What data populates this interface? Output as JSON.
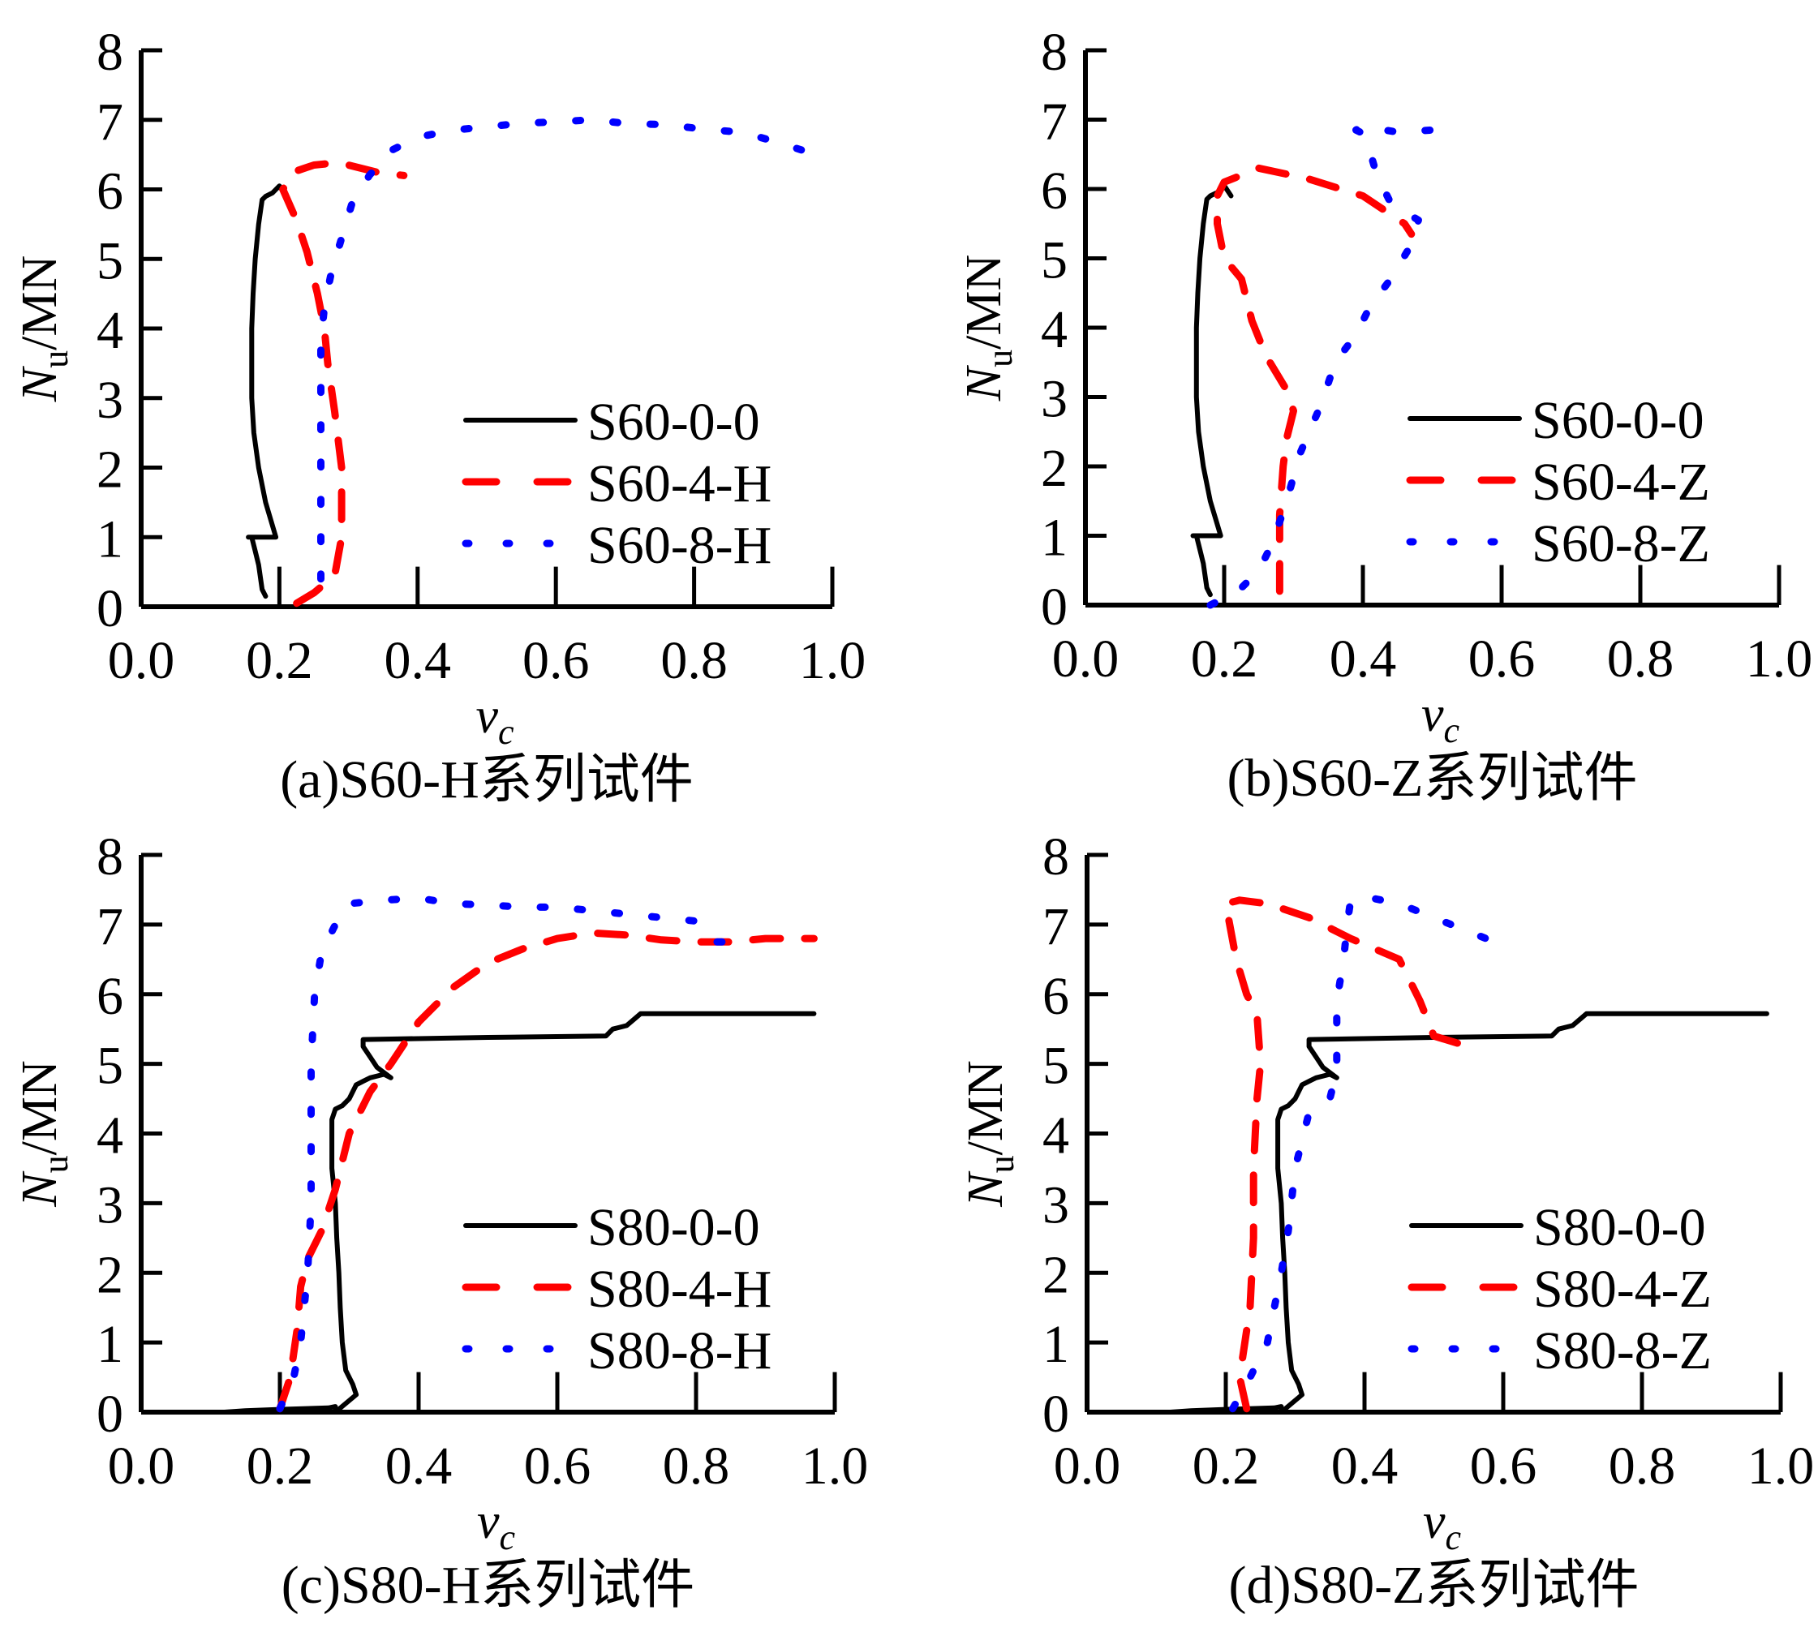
{
  "figure": {
    "panels": 4,
    "colors": {
      "series_0": "#000000",
      "series_4": "#ff0000",
      "series_8": "#0000ff"
    }
  },
  "chart_data": [
    {
      "id": "a",
      "type": "line",
      "caption": "(a)S60-H系列试件",
      "xlabel": "v",
      "xlabel_sub": "c",
      "ylabel": "N",
      "ylabel_sub": "u",
      "ylabel_unit": "/MN",
      "xlim": [
        0,
        1.0
      ],
      "ylim": [
        0,
        8
      ],
      "xticks": [
        "0.0",
        "0.2",
        "0.4",
        "0.6",
        "0.8",
        "1.0"
      ],
      "yticks": [
        "0",
        "1",
        "2",
        "3",
        "4",
        "5",
        "6",
        "7",
        "8"
      ],
      "legend_position": "lower-right",
      "series": [
        {
          "name": "S60-0-0",
          "style": "solid",
          "color": "#000000",
          "x": [
            0.18,
            0.175,
            0.17,
            0.165,
            0.16,
            0.155,
            0.195,
            0.18,
            0.17,
            0.163,
            0.16,
            0.16,
            0.16,
            0.162,
            0.165,
            0.17,
            0.175,
            0.18,
            0.19,
            0.2,
            0.21
          ],
          "y": [
            0.15,
            0.25,
            0.6,
            0.8,
            1.0,
            1.0,
            1.0,
            1.5,
            2.0,
            2.5,
            3.0,
            3.5,
            4.0,
            4.5,
            5.0,
            5.5,
            5.85,
            5.9,
            5.95,
            6.05,
            5.9
          ]
        },
        {
          "name": "S60-4-H",
          "style": "dashed",
          "color": "#ff0000",
          "x": [
            0.225,
            0.25,
            0.28,
            0.29,
            0.29,
            0.28,
            0.27,
            0.265,
            0.255,
            0.24,
            0.225,
            0.205,
            0.22,
            0.25,
            0.28,
            0.3,
            0.34,
            0.38
          ],
          "y": [
            0.05,
            0.2,
            0.45,
            1.0,
            2.0,
            2.8,
            3.5,
            4.0,
            4.5,
            5.1,
            5.55,
            6.0,
            6.25,
            6.35,
            6.38,
            6.35,
            6.25,
            6.2
          ]
        },
        {
          "name": "S60-8-H",
          "style": "dotted",
          "color": "#0000ff",
          "x": [
            0.26,
            0.26,
            0.26,
            0.26,
            0.26,
            0.265,
            0.275,
            0.29,
            0.305,
            0.33,
            0.36,
            0.4,
            0.45,
            0.5,
            0.55,
            0.6,
            0.65,
            0.7,
            0.76,
            0.81,
            0.87,
            0.92,
            0.97
          ],
          "y": [
            0.4,
            1.2,
            2.2,
            3.2,
            3.8,
            4.3,
            4.8,
            5.3,
            5.8,
            6.2,
            6.55,
            6.75,
            6.85,
            6.9,
            6.95,
            6.97,
            7.0,
            6.95,
            6.93,
            6.87,
            6.82,
            6.68,
            6.52
          ]
        }
      ]
    },
    {
      "id": "b",
      "type": "line",
      "caption": "(b)S60-Z系列试件",
      "xlabel": "v",
      "xlabel_sub": "c",
      "ylabel": "N",
      "ylabel_sub": "u",
      "ylabel_unit": "/MN",
      "xlim": [
        0,
        1.0
      ],
      "ylim": [
        0,
        8
      ],
      "xticks": [
        "0.0",
        "0.2",
        "0.4",
        "0.6",
        "0.8",
        "1.0"
      ],
      "yticks": [
        "0",
        "1",
        "2",
        "3",
        "4",
        "5",
        "6",
        "7",
        "8"
      ],
      "legend_position": "lower-right",
      "series": [
        {
          "name": "S60-0-0",
          "style": "solid",
          "color": "#000000",
          "x": [
            0.18,
            0.175,
            0.17,
            0.165,
            0.16,
            0.155,
            0.195,
            0.18,
            0.17,
            0.163,
            0.16,
            0.16,
            0.16,
            0.162,
            0.165,
            0.17,
            0.175,
            0.18,
            0.19,
            0.2,
            0.21
          ],
          "y": [
            0.15,
            0.25,
            0.6,
            0.8,
            1.0,
            1.0,
            1.0,
            1.5,
            2.0,
            2.5,
            3.0,
            3.5,
            4.0,
            4.5,
            5.0,
            5.5,
            5.85,
            5.9,
            5.95,
            6.05,
            5.9
          ]
        },
        {
          "name": "S60-4-Z",
          "style": "dashed",
          "color": "#ff0000",
          "x": [
            0.28,
            0.28,
            0.28,
            0.285,
            0.29,
            0.3,
            0.29,
            0.26,
            0.24,
            0.225,
            0.2,
            0.19,
            0.19,
            0.2,
            0.25,
            0.32,
            0.4,
            0.46,
            0.47
          ],
          "y": [
            0.2,
            0.8,
            1.3,
            2.0,
            2.4,
            2.8,
            3.1,
            3.6,
            4.1,
            4.7,
            5.0,
            5.5,
            5.9,
            6.1,
            6.3,
            6.15,
            5.9,
            5.5,
            5.35
          ]
        },
        {
          "name": "S60-8-Z",
          "style": "dotted",
          "color": "#0000ff",
          "x": [
            0.18,
            0.22,
            0.25,
            0.27,
            0.29,
            0.31,
            0.34,
            0.36,
            0.39,
            0.41,
            0.44,
            0.47,
            0.48,
            0.44,
            0.42,
            0.41,
            0.4,
            0.39,
            0.4,
            0.45,
            0.5
          ],
          "y": [
            0.0,
            0.2,
            0.5,
            0.9,
            1.5,
            2.2,
            2.9,
            3.5,
            3.9,
            4.3,
            4.7,
            5.2,
            5.55,
            5.8,
            6.2,
            6.55,
            6.8,
            6.85,
            6.9,
            6.82,
            6.85
          ]
        }
      ]
    },
    {
      "id": "c",
      "type": "line",
      "caption": "(c)S80-H系列试件",
      "xlabel": "v",
      "xlabel_sub": "c",
      "ylabel": "N",
      "ylabel_sub": "u",
      "ylabel_unit": "/MN",
      "xlim": [
        0,
        1.0
      ],
      "ylim": [
        0,
        8
      ],
      "xticks": [
        "0.0",
        "0.2",
        "0.4",
        "0.6",
        "0.8",
        "1.0"
      ],
      "yticks": [
        "0",
        "1",
        "2",
        "3",
        "4",
        "5",
        "6",
        "7",
        "8"
      ],
      "legend_position": "lower-right",
      "series": [
        {
          "name": "S80-0-0",
          "style": "solid",
          "color": "#000000",
          "x": [
            0.12,
            0.15,
            0.2,
            0.27,
            0.28,
            0.28,
            0.31,
            0.305,
            0.295,
            0.29,
            0.287,
            0.285,
            0.282,
            0.28,
            0.275,
            0.275,
            0.28,
            0.29,
            0.3,
            0.31,
            0.32,
            0.33,
            0.35,
            0.36,
            0.34,
            0.33,
            0.32,
            0.32,
            0.5,
            0.67,
            0.68,
            0.7,
            0.72,
            0.97
          ],
          "y": [
            0.0,
            0.02,
            0.04,
            0.06,
            0.08,
            0.0,
            0.25,
            0.4,
            0.6,
            1.0,
            1.5,
            2.0,
            2.5,
            3.0,
            3.5,
            4.2,
            4.35,
            4.4,
            4.5,
            4.7,
            4.75,
            4.8,
            4.85,
            4.8,
            4.95,
            5.1,
            5.25,
            5.35,
            5.38,
            5.4,
            5.5,
            5.55,
            5.72,
            5.72
          ]
        },
        {
          "name": "S80-4-H",
          "style": "dashed",
          "color": "#ff0000",
          "x": [
            0.2,
            0.215,
            0.225,
            0.23,
            0.24,
            0.26,
            0.28,
            0.3,
            0.33,
            0.36,
            0.4,
            0.45,
            0.5,
            0.55,
            0.6,
            0.65,
            0.7,
            0.75,
            0.8,
            0.85,
            0.9,
            0.97
          ],
          "y": [
            0.05,
            0.5,
            1.2,
            1.8,
            2.2,
            2.6,
            3.2,
            4.0,
            4.6,
            5.0,
            5.6,
            6.1,
            6.45,
            6.65,
            6.8,
            6.88,
            6.85,
            6.78,
            6.75,
            6.75,
            6.8,
            6.8
          ]
        },
        {
          "name": "S80-8-H",
          "style": "dotted",
          "color": "#0000ff",
          "x": [
            0.2,
            0.22,
            0.23,
            0.24,
            0.245,
            0.245,
            0.245,
            0.25,
            0.26,
            0.28,
            0.3,
            0.35,
            0.4,
            0.45,
            0.5,
            0.55,
            0.6,
            0.65,
            0.7,
            0.75,
            0.8,
            0.82,
            0.83,
            0.85
          ],
          "y": [
            0.05,
            0.5,
            1.0,
            2.0,
            3.0,
            4.0,
            5.0,
            6.0,
            6.6,
            7.0,
            7.3,
            7.35,
            7.38,
            7.3,
            7.28,
            7.25,
            7.25,
            7.2,
            7.15,
            7.1,
            7.05,
            6.9,
            6.75,
            6.75
          ]
        }
      ]
    },
    {
      "id": "d",
      "type": "line",
      "caption": "(d)S80-Z系列试件",
      "xlabel": "v",
      "xlabel_sub": "c",
      "ylabel": "N",
      "ylabel_sub": "u",
      "ylabel_unit": "/MN",
      "xlim": [
        0,
        1.0
      ],
      "ylim": [
        0,
        8
      ],
      "xticks": [
        "0.0",
        "0.2",
        "0.4",
        "0.6",
        "0.8",
        "1.0"
      ],
      "yticks": [
        "0",
        "1",
        "2",
        "3",
        "4",
        "5",
        "6",
        "7",
        "8"
      ],
      "legend_position": "lower-right",
      "series": [
        {
          "name": "S80-0-0",
          "style": "solid",
          "color": "#000000",
          "x": [
            0.12,
            0.15,
            0.2,
            0.27,
            0.28,
            0.28,
            0.31,
            0.305,
            0.295,
            0.29,
            0.287,
            0.285,
            0.282,
            0.28,
            0.275,
            0.275,
            0.28,
            0.29,
            0.3,
            0.31,
            0.32,
            0.33,
            0.35,
            0.36,
            0.34,
            0.33,
            0.32,
            0.32,
            0.5,
            0.67,
            0.68,
            0.7,
            0.72,
            0.98
          ],
          "y": [
            0.0,
            0.02,
            0.04,
            0.06,
            0.08,
            0.0,
            0.25,
            0.4,
            0.6,
            1.0,
            1.5,
            2.0,
            2.5,
            3.0,
            3.5,
            4.2,
            4.35,
            4.4,
            4.5,
            4.7,
            4.75,
            4.8,
            4.85,
            4.8,
            4.95,
            5.1,
            5.25,
            5.35,
            5.38,
            5.4,
            5.5,
            5.55,
            5.72,
            5.72
          ]
        },
        {
          "name": "S80-4-Z",
          "style": "dashed",
          "color": "#ff0000",
          "x": [
            0.23,
            0.22,
            0.235,
            0.24,
            0.24,
            0.245,
            0.25,
            0.245,
            0.23,
            0.215,
            0.2,
            0.22,
            0.26,
            0.32,
            0.38,
            0.45,
            0.48,
            0.5,
            0.55
          ],
          "y": [
            0.05,
            0.5,
            1.5,
            2.5,
            3.5,
            4.5,
            5.0,
            5.7,
            6.0,
            6.5,
            7.3,
            7.35,
            7.3,
            7.1,
            6.8,
            6.5,
            5.9,
            5.4,
            5.25
          ]
        },
        {
          "name": "S80-8-Z",
          "style": "dotted",
          "color": "#0000ff",
          "x": [
            0.21,
            0.23,
            0.26,
            0.27,
            0.28,
            0.29,
            0.3,
            0.32,
            0.35,
            0.36,
            0.36,
            0.37,
            0.375,
            0.38,
            0.4,
            0.45,
            0.5,
            0.55,
            0.6
          ],
          "y": [
            0.05,
            0.4,
            1.0,
            1.5,
            2.0,
            2.6,
            3.5,
            4.3,
            4.5,
            4.9,
            5.9,
            6.5,
            7.0,
            7.35,
            7.4,
            7.3,
            7.1,
            6.9,
            6.7
          ]
        }
      ]
    }
  ]
}
